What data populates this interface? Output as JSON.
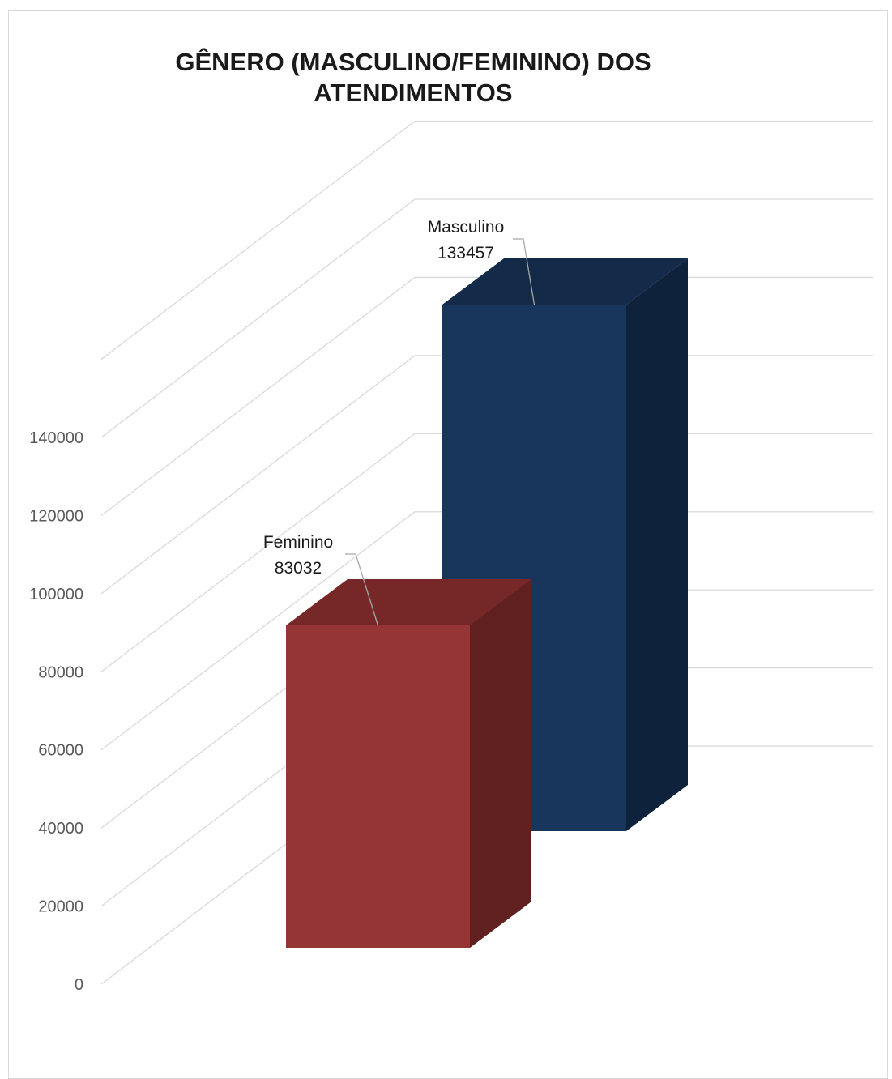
{
  "chart_data": {
    "type": "bar",
    "title": "GÊNERO (MASCULINO/FEMININO) DOS ATENDIMENTOS",
    "title_lines": [
      "GÊNERO (MASCULINO/FEMININO) DOS",
      "ATENDIMENTOS"
    ],
    "categories": [
      "Feminino",
      "Masculino"
    ],
    "values": [
      83032,
      133457
    ],
    "ylim": [
      0,
      140000
    ],
    "yticks": [
      0,
      20000,
      40000,
      60000,
      80000,
      100000,
      120000,
      140000
    ],
    "grid": true,
    "three_d": true,
    "legend": "none",
    "data_labels": [
      {
        "category": "Feminino",
        "value": "83032"
      },
      {
        "category": "Masculino",
        "value": "133457"
      }
    ],
    "colors": {
      "Feminino": {
        "front": "#963535",
        "top": "#762828",
        "side": "#612020"
      },
      "Masculino": {
        "front": "#18365c",
        "top": "#132a48",
        "side": "#0f223c"
      },
      "grid": "#d9d9d9",
      "tick_text": "#595959"
    }
  }
}
